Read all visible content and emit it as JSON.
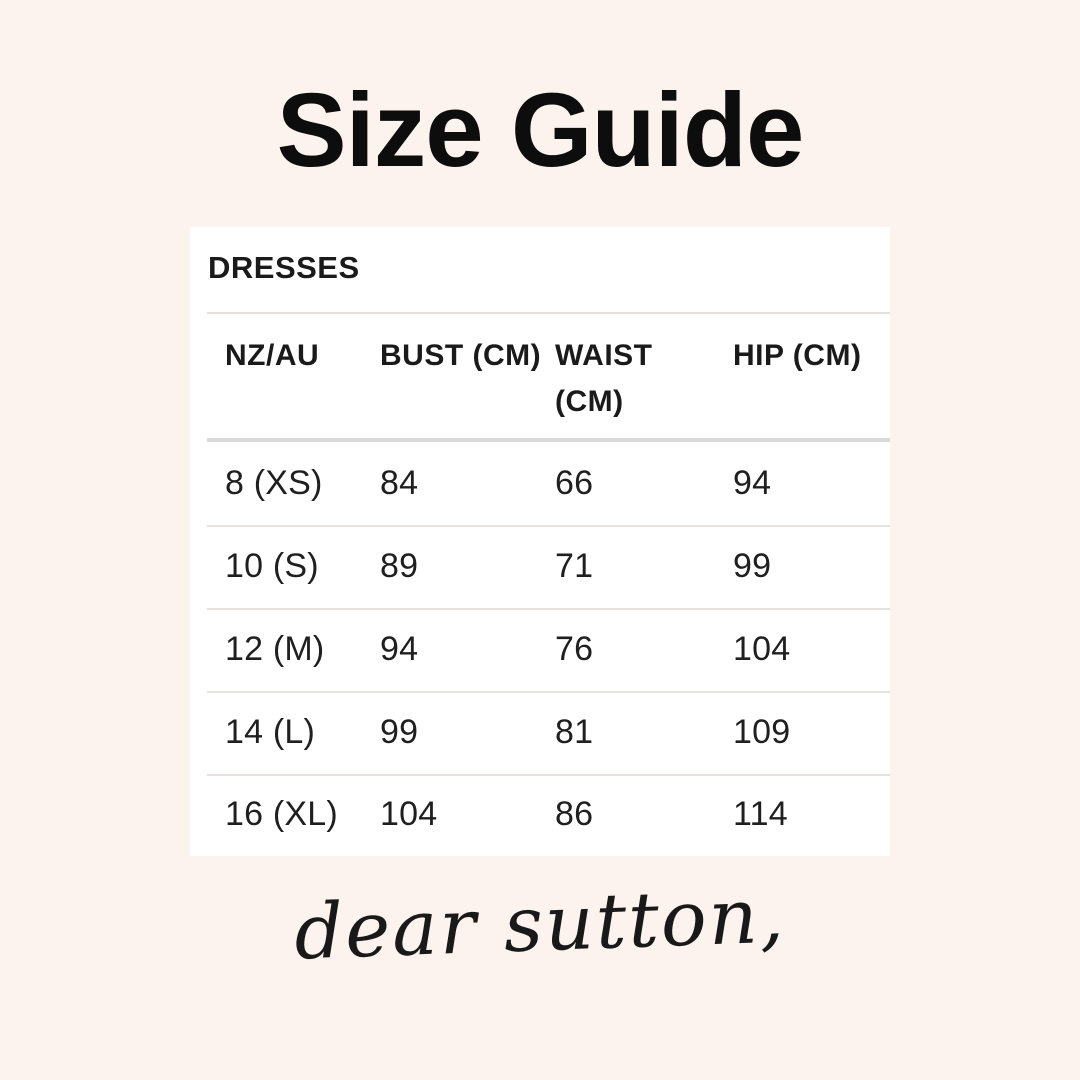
{
  "page": {
    "title": "Size Guide"
  },
  "card": {
    "section_title": "DRESSES",
    "table": {
      "columns": [
        "NZ/AU",
        "BUST (CM)",
        "WAIST (CM)",
        "HIP (CM)"
      ],
      "rows": [
        [
          "8 (XS)",
          "84",
          "66",
          "94"
        ],
        [
          "10 (S)",
          "89",
          "71",
          "99"
        ],
        [
          "12 (M)",
          "94",
          "76",
          "104"
        ],
        [
          "14 (L)",
          "99",
          "81",
          "109"
        ],
        [
          "16 (XL)",
          "104",
          "86",
          "114"
        ]
      ]
    }
  },
  "signature": {
    "text": "dear sutton,"
  },
  "colors": {
    "background": "#FCF2EE",
    "card_background": "#FFFFFF",
    "text": "#161616",
    "divider_light": "#E3E0DE",
    "divider_strong": "#DCDAD8"
  }
}
